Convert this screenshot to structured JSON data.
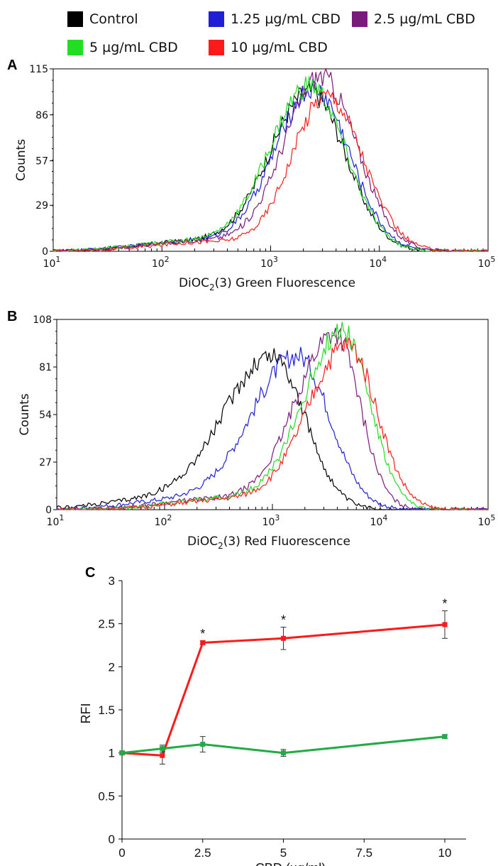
{
  "legend": [
    {
      "label": "Control",
      "color": "#000000"
    },
    {
      "label": "1.25 µg/mL CBD",
      "color": "#1f1fd6"
    },
    {
      "label": "2.5 µg/mL CBD",
      "color": "#7a1a7a"
    },
    {
      "label": "5 µg/mL CBD",
      "color": "#22dd22"
    },
    {
      "label": "10 µg/mL CBD",
      "color": "#ff1a1a"
    }
  ],
  "chart_data": [
    {
      "panel": "A",
      "type": "line",
      "xlabel": "DiOC2(3) Green Fluorescence",
      "xlabel_parts": [
        "DiOC",
        "2",
        "(3) Green Fluorescence"
      ],
      "ylabel": "Counts",
      "x_scale": "log",
      "xlim": [
        10,
        100000
      ],
      "ylim": [
        0,
        115
      ],
      "x_ticks": [
        {
          "base": "10",
          "exp": "1"
        },
        {
          "base": "10",
          "exp": "2"
        },
        {
          "base": "10",
          "exp": "3"
        },
        {
          "base": "10",
          "exp": "4"
        },
        {
          "base": "10",
          "exp": "5"
        }
      ],
      "y_ticks": [
        "0",
        "29",
        "57",
        "86",
        "115"
      ],
      "series": [
        {
          "name": "Control",
          "color": "#000000",
          "peak_x": 2300,
          "peak_y": 100,
          "width": 0.37,
          "right_width": 0.33
        },
        {
          "name": "1.25 µg/mL CBD",
          "color": "#1f1fd6",
          "peak_x": 2500,
          "peak_y": 102,
          "width": 0.36,
          "right_width": 0.33
        },
        {
          "name": "2.5 µg/mL CBD",
          "color": "#7a1a7a",
          "peak_x": 2900,
          "peak_y": 110,
          "width": 0.34,
          "right_width": 0.33
        },
        {
          "name": "5 µg/mL CBD",
          "color": "#22dd22",
          "peak_x": 2300,
          "peak_y": 104,
          "width": 0.37,
          "right_width": 0.33
        },
        {
          "name": "10 µg/mL CBD",
          "color": "#ff1a1a",
          "peak_x": 3300,
          "peak_y": 98,
          "width": 0.32,
          "right_width": 0.33
        }
      ]
    },
    {
      "panel": "B",
      "type": "line",
      "xlabel": "DiOC2(3) Red Fluorescence",
      "xlabel_parts": [
        "DiOC",
        "2",
        "(3) Red Fluorescence"
      ],
      "ylabel": "Counts",
      "x_scale": "log",
      "xlim": [
        10,
        100000
      ],
      "ylim": [
        0,
        108
      ],
      "x_ticks": [
        {
          "base": "10",
          "exp": "1"
        },
        {
          "base": "10",
          "exp": "2"
        },
        {
          "base": "10",
          "exp": "3"
        },
        {
          "base": "10",
          "exp": "4"
        },
        {
          "base": "10",
          "exp": "5"
        }
      ],
      "y_ticks": [
        "0",
        "27",
        "54",
        "81",
        "108"
      ],
      "series": [
        {
          "name": "Control",
          "color": "#000000",
          "peak_x": 1000,
          "peak_y": 87,
          "width": 0.45,
          "right_width": 0.3
        },
        {
          "name": "1.25 µg/mL CBD",
          "color": "#1f1fd6",
          "peak_x": 1700,
          "peak_y": 87,
          "width": 0.42,
          "right_width": 0.3
        },
        {
          "name": "2.5 µg/mL CBD",
          "color": "#7a1a7a",
          "peak_x": 3800,
          "peak_y": 100,
          "width": 0.36,
          "right_width": 0.23
        },
        {
          "name": "5 µg/mL CBD",
          "color": "#22dd22",
          "peak_x": 4500,
          "peak_y": 102,
          "width": 0.36,
          "right_width": 0.25
        },
        {
          "name": "10 µg/mL CBD",
          "color": "#ff1a1a",
          "peak_x": 5000,
          "peak_y": 93,
          "width": 0.37,
          "right_width": 0.27
        }
      ]
    },
    {
      "panel": "C",
      "type": "line",
      "xlabel": "CBD (µg/ml)",
      "ylabel": "RFI",
      "xlim": [
        0,
        10
      ],
      "ylim": [
        0,
        3
      ],
      "x_ticks": [
        "0",
        "2.5",
        "5",
        "7.5",
        "10"
      ],
      "y_ticks": [
        "0",
        "0.5",
        "1",
        "1.5",
        "2",
        "2.5",
        "3"
      ],
      "x": [
        0,
        1.25,
        2.5,
        5,
        10
      ],
      "series": [
        {
          "color": "#ff1a1a",
          "values": [
            1.0,
            0.97,
            2.28,
            2.33,
            2.49
          ],
          "errors": [
            0.0,
            0.1,
            0.02,
            0.13,
            0.16
          ],
          "annotations": [
            "",
            "",
            "*",
            "*",
            "*"
          ]
        },
        {
          "color": "#22aa44",
          "values": [
            1.0,
            1.05,
            1.1,
            1.0,
            1.19
          ],
          "errors": [
            0.02,
            0.04,
            0.09,
            0.04,
            0.02
          ],
          "annotations": [
            "",
            "",
            "",
            "",
            ""
          ]
        }
      ]
    }
  ]
}
